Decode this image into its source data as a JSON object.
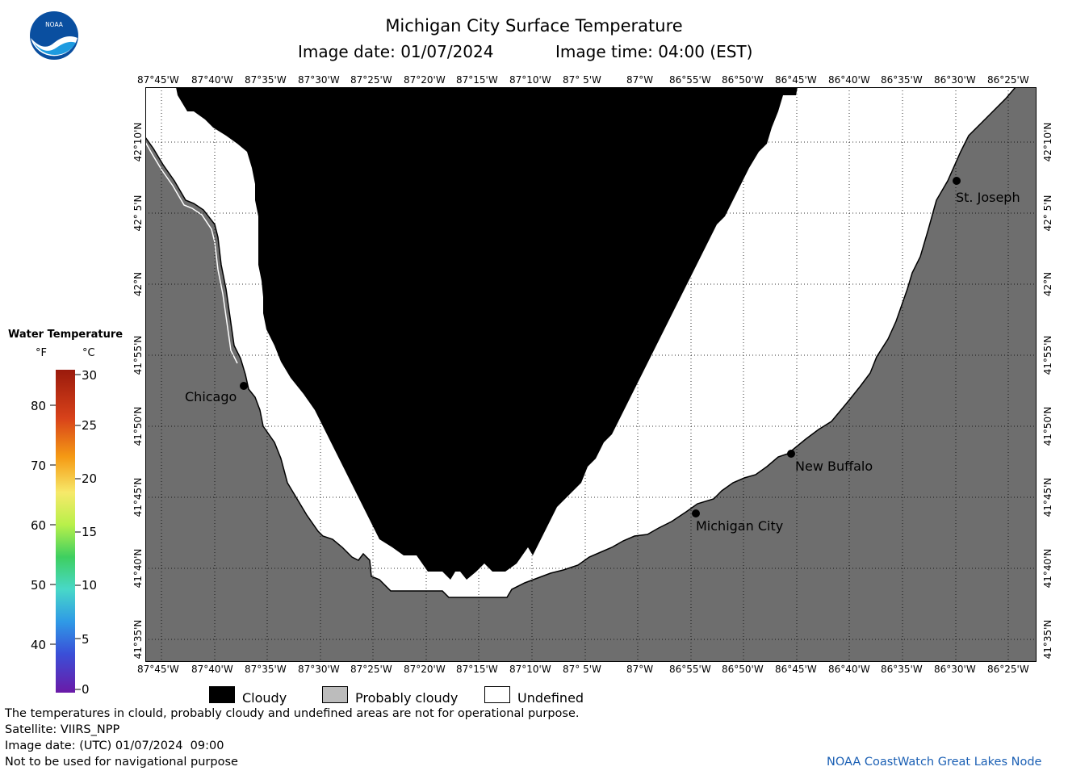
{
  "header": {
    "logo_text": "NOAA",
    "title": "Michigan City Surface Temperature",
    "image_date": "Image date: 01/07/2024",
    "image_time": "Image time: 04:00 (EST)"
  },
  "map": {
    "lon_labels": [
      "87°45'W",
      "87°40'W",
      "87°35'W",
      "87°30'W",
      "87°25'W",
      "87°20'W",
      "87°15'W",
      "87°10'W",
      "87° 5'W",
      "87°W",
      "86°55'W",
      "86°50'W",
      "86°45'W",
      "86°40'W",
      "86°35'W",
      "86°30'W",
      "86°25'W"
    ],
    "lat_labels": [
      "42°10'N",
      "42° 5'N",
      "42°N",
      "41°55'N",
      "41°50'N",
      "41°45'N",
      "41°40'N",
      "41°35'N"
    ],
    "cities": [
      {
        "name": "Chicago"
      },
      {
        "name": "St. Joseph"
      },
      {
        "name": "New Buffalo"
      },
      {
        "name": "Michigan City"
      }
    ],
    "colors": {
      "cloudy": "#000000",
      "probably_cloudy": "#6e6e6e",
      "undefined": "#ffffff"
    }
  },
  "scale": {
    "title": "Water Temperature",
    "unit_f": "°F",
    "unit_c": "°C",
    "f_ticks": [
      "80",
      "70",
      "60",
      "50",
      "40"
    ],
    "c_ticks": [
      "30",
      "25",
      "20",
      "15",
      "10",
      "5",
      "0"
    ]
  },
  "legend": {
    "cloudy": "Cloudy",
    "probably_cloudy": "Probably cloudy",
    "undefined": "Undefined"
  },
  "notes": {
    "line1": "The temperatures in clould, probably cloudy and undefined areas are not for operational purpose.",
    "line2": "Satellite: VIIRS_NPP",
    "line3": "Image date: (UTC) 01/07/2024  09:00",
    "line4": "Not to be used for navigational purpose",
    "credit": "NOAA CoastWatch Great Lakes Node"
  }
}
